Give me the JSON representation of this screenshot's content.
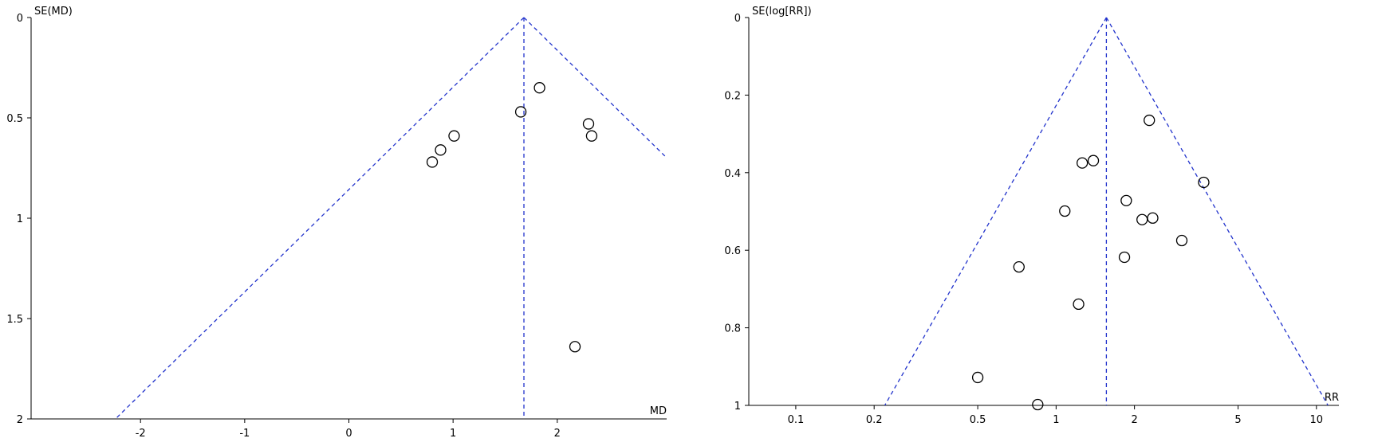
{
  "chart_data": [
    {
      "type": "funnel",
      "y_label": "SE(MD)",
      "x_label": "MD",
      "x_log": false,
      "xlim": [
        -3.05,
        3.05
      ],
      "xticks": [
        -2,
        -1,
        0,
        1,
        2
      ],
      "ylim": [
        0,
        2
      ],
      "yticks": [
        0,
        0.5,
        1,
        1.5,
        2
      ],
      "y_inverted": true,
      "pooled_estimate": 1.68,
      "line_color": "#2233cc",
      "point_color": "#000000",
      "x": [
        1.83,
        1.65,
        2.3,
        2.33,
        1.01,
        0.88,
        0.8,
        2.17
      ],
      "values": [
        0.35,
        0.47,
        0.53,
        0.59,
        0.59,
        0.66,
        0.72,
        1.64
      ]
    },
    {
      "type": "funnel",
      "y_label": "SE(log[RR])",
      "x_label": "RR",
      "x_log": true,
      "xlim": [
        0.066,
        12.2
      ],
      "xticks": [
        0.1,
        0.2,
        0.5,
        1,
        2,
        5,
        10
      ],
      "ylim": [
        0,
        1
      ],
      "yticks": [
        0,
        0.2,
        0.4,
        0.6,
        0.8,
        1
      ],
      "y_inverted": true,
      "pooled_estimate": 1.56,
      "line_color": "#2233cc",
      "point_color": "#000000",
      "x": [
        2.28,
        3.69,
        1.39,
        1.26,
        1.86,
        1.08,
        2.14,
        2.35,
        3.04,
        1.83,
        0.72,
        1.22,
        0.5,
        0.85
      ],
      "values": [
        0.265,
        0.425,
        0.369,
        0.375,
        0.472,
        0.499,
        0.521,
        0.517,
        0.575,
        0.618,
        0.643,
        0.739,
        0.928,
        0.998
      ]
    }
  ]
}
